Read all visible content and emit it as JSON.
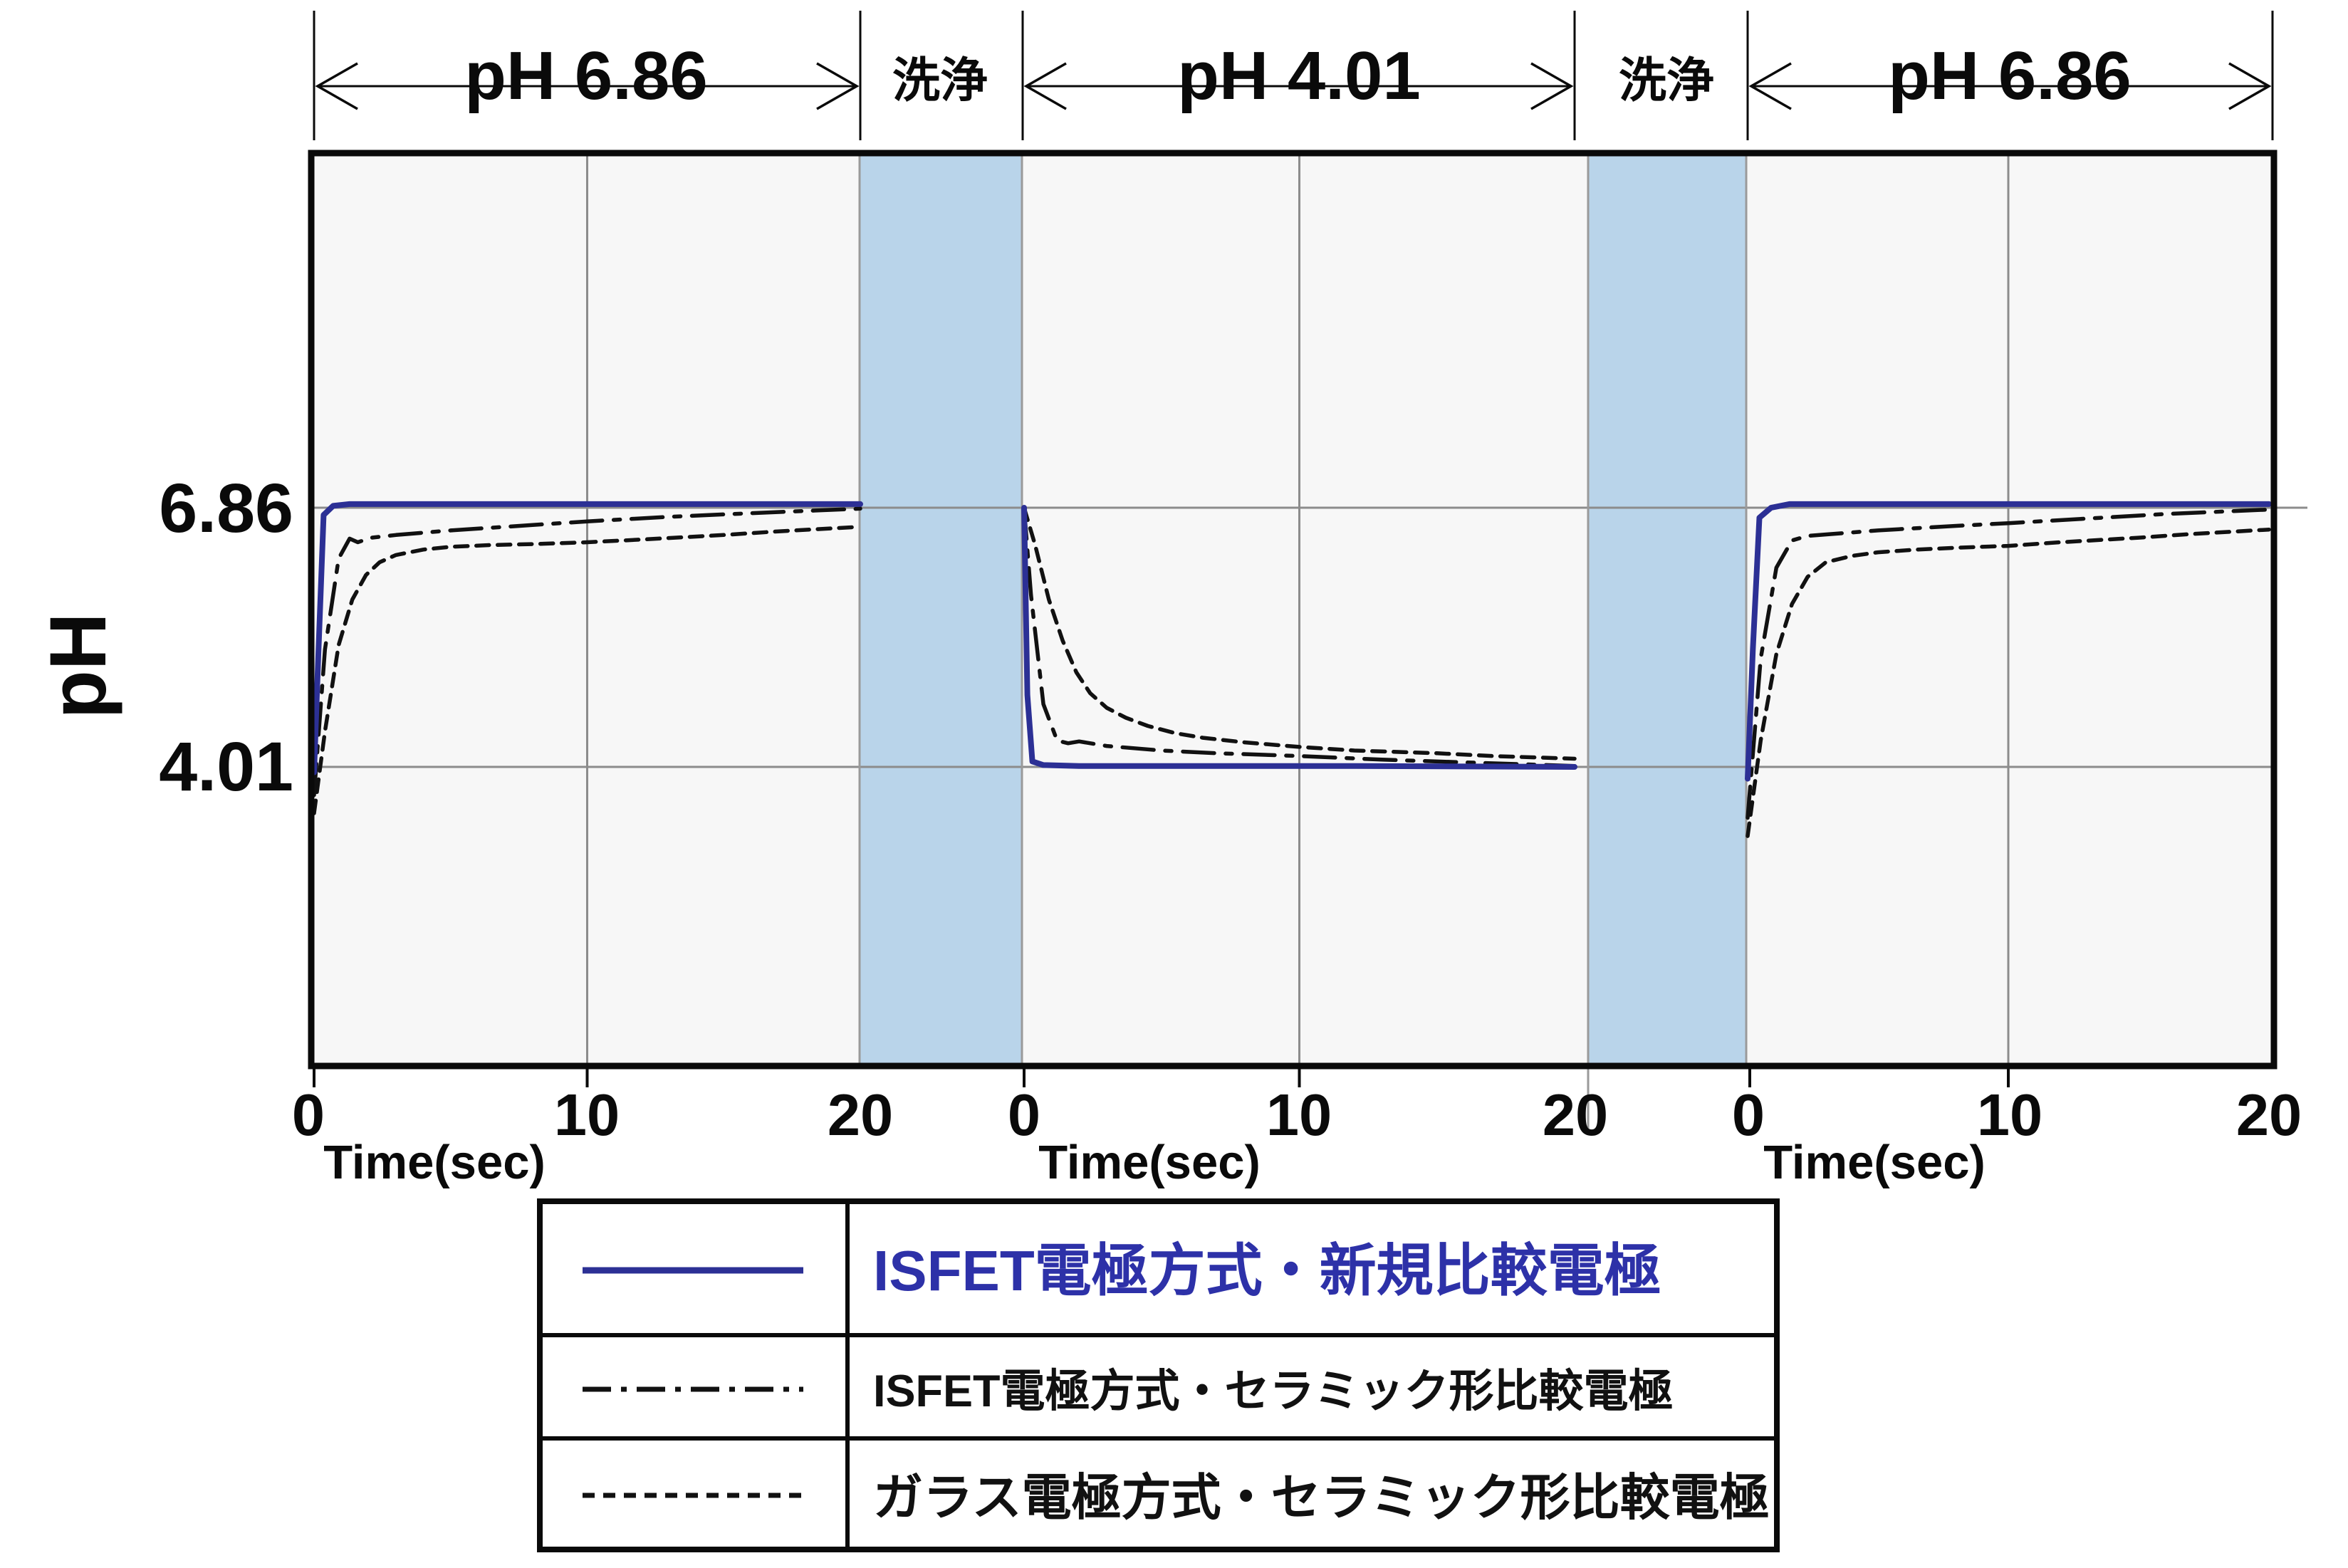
{
  "header": {
    "segments": [
      {
        "label": "pH 6.86",
        "type": "arrow"
      },
      {
        "label": "洗浄",
        "type": "wash"
      },
      {
        "label": "pH 4.01",
        "type": "arrow"
      },
      {
        "label": "洗浄",
        "type": "wash"
      },
      {
        "label": "pH 6.86",
        "type": "arrow"
      }
    ]
  },
  "y_axis": {
    "title": "pH",
    "high_label": "6.86",
    "low_label": "4.01"
  },
  "x_axis": {
    "label": "Time(sec)",
    "ticks": [
      "0",
      "10",
      "20"
    ]
  },
  "colors": {
    "blue_line": "#2c3095",
    "legend_blue_text": "#2d31a8",
    "black_line": "#111111",
    "wash_band": "#b9d4ea",
    "plot_background": "#f7f7f7",
    "gridline": "#8c8c8c"
  },
  "chart_data": {
    "type": "line",
    "title": "",
    "xlabel": "Time(sec)",
    "ylabel": "pH",
    "x_range_per_panel": [
      0,
      20
    ],
    "y_reference_lines": [
      6.86,
      4.01
    ],
    "grid": "reference lines at pH 6.86 and 4.01, vertical lines at 10 s and panel edges",
    "legend_position": "bottom table",
    "series_meta": [
      {
        "id": "isfet_new",
        "label": "ISFET電極方式・新規比較電極",
        "color": "#2c3095",
        "label_color": "#2d31a8",
        "dash": "solid"
      },
      {
        "id": "isfet_ceramic",
        "label": "ISFET電極方式・セラミック形比較電極",
        "color": "#111111",
        "label_color": "#111111",
        "dash": "dashdot"
      },
      {
        "id": "glass_ceramic",
        "label": "ガラス電極方式・セラミック形比較電極",
        "color": "#111111",
        "label_color": "#111111",
        "dash": "dash"
      }
    ],
    "panels": [
      {
        "solution": "pH 6.86",
        "series": {
          "isfet_new": [
            [
              0,
              3.95
            ],
            [
              0.15,
              5.2
            ],
            [
              0.35,
              6.78
            ],
            [
              0.7,
              6.88
            ],
            [
              1.3,
              6.9
            ],
            [
              20,
              6.9
            ]
          ],
          "isfet_ceramic": [
            [
              0,
              3.7
            ],
            [
              0.4,
              5.3
            ],
            [
              0.9,
              6.3
            ],
            [
              1.3,
              6.52
            ],
            [
              1.6,
              6.48
            ],
            [
              2.1,
              6.53
            ],
            [
              3,
              6.56
            ],
            [
              5,
              6.61
            ],
            [
              8,
              6.67
            ],
            [
              10,
              6.71
            ],
            [
              13,
              6.76
            ],
            [
              16,
              6.8
            ],
            [
              20,
              6.85
            ]
          ],
          "glass_ceramic": [
            [
              0,
              3.5
            ],
            [
              0.4,
              4.4
            ],
            [
              0.9,
              5.35
            ],
            [
              1.4,
              5.85
            ],
            [
              1.9,
              6.12
            ],
            [
              2.4,
              6.26
            ],
            [
              3,
              6.34
            ],
            [
              4,
              6.4
            ],
            [
              5,
              6.43
            ],
            [
              6.5,
              6.45
            ],
            [
              8,
              6.46
            ],
            [
              10,
              6.48
            ],
            [
              12,
              6.51
            ],
            [
              15,
              6.56
            ],
            [
              17,
              6.6
            ],
            [
              20,
              6.65
            ]
          ]
        }
      },
      {
        "solution": "pH 4.01",
        "series": {
          "isfet_new": [
            [
              0,
              6.86
            ],
            [
              0.12,
              4.8
            ],
            [
              0.3,
              4.07
            ],
            [
              0.7,
              4.03
            ],
            [
              2,
              4.02
            ],
            [
              12,
              4.02
            ],
            [
              20,
              4.01
            ]
          ],
          "isfet_ceramic": [
            [
              0,
              6.86
            ],
            [
              0.25,
              5.9
            ],
            [
              0.7,
              4.7
            ],
            [
              1.2,
              4.3
            ],
            [
              1.6,
              4.27
            ],
            [
              2,
              4.29
            ],
            [
              3,
              4.24
            ],
            [
              5,
              4.19
            ],
            [
              7,
              4.16
            ],
            [
              10,
              4.13
            ],
            [
              13,
              4.09
            ],
            [
              16,
              4.06
            ],
            [
              20,
              4.02
            ]
          ],
          "glass_ceramic": [
            [
              0,
              6.86
            ],
            [
              0.4,
              6.45
            ],
            [
              0.9,
              5.85
            ],
            [
              1.4,
              5.4
            ],
            [
              1.9,
              5.05
            ],
            [
              2.4,
              4.82
            ],
            [
              3,
              4.66
            ],
            [
              3.7,
              4.55
            ],
            [
              4.5,
              4.46
            ],
            [
              5.5,
              4.38
            ],
            [
              6.5,
              4.33
            ],
            [
              8,
              4.28
            ],
            [
              10,
              4.23
            ],
            [
              12,
              4.19
            ],
            [
              15,
              4.16
            ],
            [
              17,
              4.13
            ],
            [
              20,
              4.1
            ]
          ]
        }
      },
      {
        "solution": "pH 6.86",
        "series": {
          "isfet_new": [
            [
              0,
              3.88
            ],
            [
              0.2,
              5.3
            ],
            [
              0.45,
              6.75
            ],
            [
              0.9,
              6.86
            ],
            [
              1.6,
              6.9
            ],
            [
              20,
              6.9
            ]
          ],
          "isfet_ceramic": [
            [
              0,
              3.45
            ],
            [
              0.5,
              5.2
            ],
            [
              1.1,
              6.2
            ],
            [
              1.7,
              6.5
            ],
            [
              2.3,
              6.55
            ],
            [
              3.2,
              6.57
            ],
            [
              5,
              6.61
            ],
            [
              8,
              6.66
            ],
            [
              10,
              6.69
            ],
            [
              13,
              6.74
            ],
            [
              16,
              6.79
            ],
            [
              20,
              6.84
            ]
          ],
          "glass_ceramic": [
            [
              0,
              3.25
            ],
            [
              0.5,
              4.3
            ],
            [
              1.1,
              5.25
            ],
            [
              1.7,
              5.8
            ],
            [
              2.3,
              6.1
            ],
            [
              3,
              6.26
            ],
            [
              4,
              6.33
            ],
            [
              5,
              6.37
            ],
            [
              6.5,
              6.4
            ],
            [
              8,
              6.42
            ],
            [
              10,
              6.44
            ],
            [
              12,
              6.48
            ],
            [
              15,
              6.53
            ],
            [
              17,
              6.57
            ],
            [
              20,
              6.62
            ]
          ]
        }
      }
    ]
  }
}
